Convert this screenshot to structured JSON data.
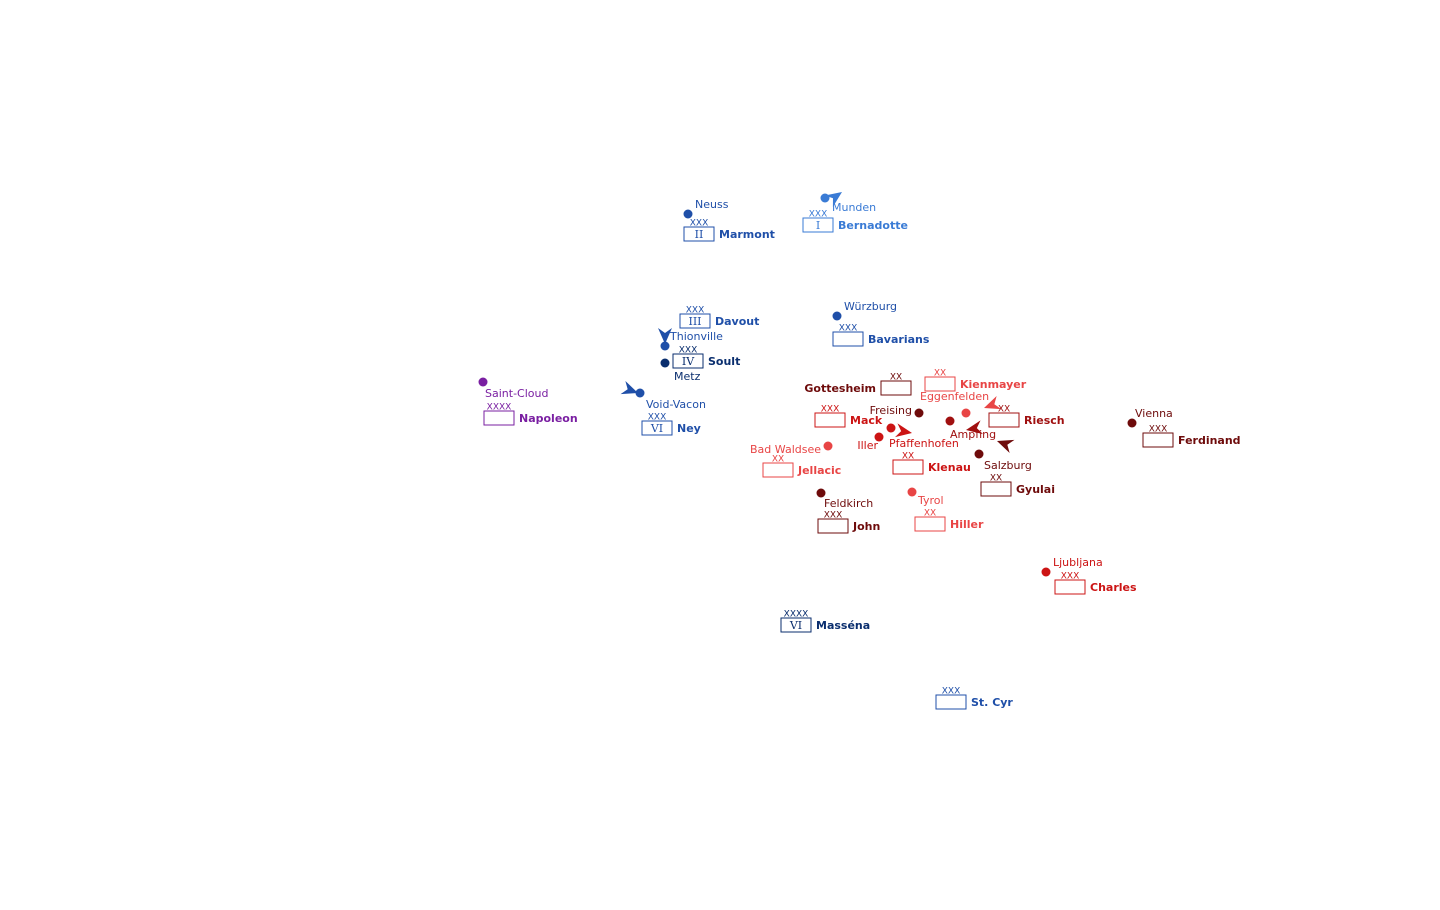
{
  "colors": {
    "french_dark": "#0a2e6e",
    "french": "#1f4fa8",
    "french_light": "#3a7bd5",
    "imperial": "#7a1fa2",
    "austrian_dark": "#6e0b0b",
    "austrian": "#cc1414",
    "austrian_light": "#e84545"
  },
  "cities": [
    {
      "name": "Neuss",
      "color": "#1f4fa8"
    },
    {
      "name": "Munden",
      "color": "#3a7bd5"
    },
    {
      "name": "Würzburg",
      "color": "#1f4fa8"
    },
    {
      "name": "Thionville",
      "color": "#1f4fa8"
    },
    {
      "name": "Metz",
      "color": "#0a2e6e"
    },
    {
      "name": "Saint-Cloud",
      "color": "#7a1fa2"
    },
    {
      "name": "Void-Vacon",
      "color": "#1f4fa8"
    },
    {
      "name": "Freising",
      "color": "#6e0b0b"
    },
    {
      "name": "Eggenfelden",
      "color": "#e84545"
    },
    {
      "name": "Iller",
      "color": "#cc1414"
    },
    {
      "name": "Pfaffenhofen",
      "color": "#cc1414"
    },
    {
      "name": "Ampfing",
      "color": "#a01010"
    },
    {
      "name": "Bad Waldsee",
      "color": "#e84545"
    },
    {
      "name": "Salzburg",
      "color": "#6e0b0b"
    },
    {
      "name": "Vienna",
      "color": "#6e0b0b"
    },
    {
      "name": "Feldkirch",
      "color": "#6e0b0b"
    },
    {
      "name": "Tyrol",
      "color": "#e84545"
    },
    {
      "name": "Ljubljana",
      "color": "#cc1414"
    }
  ],
  "units": [
    {
      "commander": "Marmont",
      "echelon": "XXX",
      "number": "II",
      "color": "#1f4fa8"
    },
    {
      "commander": "Bernadotte",
      "echelon": "XXX",
      "number": "I",
      "color": "#3a7bd5"
    },
    {
      "commander": "Davout",
      "echelon": "XXX",
      "number": "III",
      "color": "#1f4fa8"
    },
    {
      "commander": "Bavarians",
      "echelon": "XXX",
      "number": "",
      "color": "#1f4fa8"
    },
    {
      "commander": "Soult",
      "echelon": "XXX",
      "number": "IV",
      "color": "#0a2e6e"
    },
    {
      "commander": "Napoleon",
      "echelon": "XXXX",
      "number": "",
      "color": "#7a1fa2"
    },
    {
      "commander": "Ney",
      "echelon": "XXX",
      "number": "VI",
      "color": "#1f4fa8"
    },
    {
      "commander": "Gottesheim",
      "echelon": "XX",
      "number": "",
      "color": "#6e0b0b"
    },
    {
      "commander": "Kienmayer",
      "echelon": "XX",
      "number": "",
      "color": "#e84545"
    },
    {
      "commander": "Mack",
      "echelon": "XXX",
      "number": "",
      "color": "#cc1414"
    },
    {
      "commander": "Riesch",
      "echelon": "XX",
      "number": "",
      "color": "#a01010"
    },
    {
      "commander": "Ferdinand",
      "echelon": "XXX",
      "number": "",
      "color": "#6e0b0b"
    },
    {
      "commander": "Jellacic",
      "echelon": "XX",
      "number": "",
      "color": "#e84545"
    },
    {
      "commander": "Klenau",
      "echelon": "XX",
      "number": "",
      "color": "#cc1414"
    },
    {
      "commander": "Gyulai",
      "echelon": "XX",
      "number": "",
      "color": "#6e0b0b"
    },
    {
      "commander": "John",
      "echelon": "XXX",
      "number": "",
      "color": "#6e0b0b"
    },
    {
      "commander": "Hiller",
      "echelon": "XX",
      "number": "",
      "color": "#e84545"
    },
    {
      "commander": "Charles",
      "echelon": "XXX",
      "number": "",
      "color": "#cc1414"
    },
    {
      "commander": "Masséna",
      "echelon": "XXXX",
      "number": "VI",
      "color": "#0a2e6e"
    },
    {
      "commander": "St. Cyr",
      "echelon": "XXX",
      "number": "",
      "color": "#1f4fa8"
    }
  ],
  "arrows": [
    {
      "name": "bernadotte-march",
      "color": "#3a7bd5"
    },
    {
      "name": "davout-march",
      "color": "#1f4fa8"
    },
    {
      "name": "ney-march",
      "color": "#1f4fa8"
    },
    {
      "name": "mack-march",
      "color": "#cc1414"
    },
    {
      "name": "kienmayer-march",
      "color": "#e84545"
    },
    {
      "name": "riesch-march",
      "color": "#a01010"
    },
    {
      "name": "gyulai-march",
      "color": "#6e0b0b"
    }
  ]
}
